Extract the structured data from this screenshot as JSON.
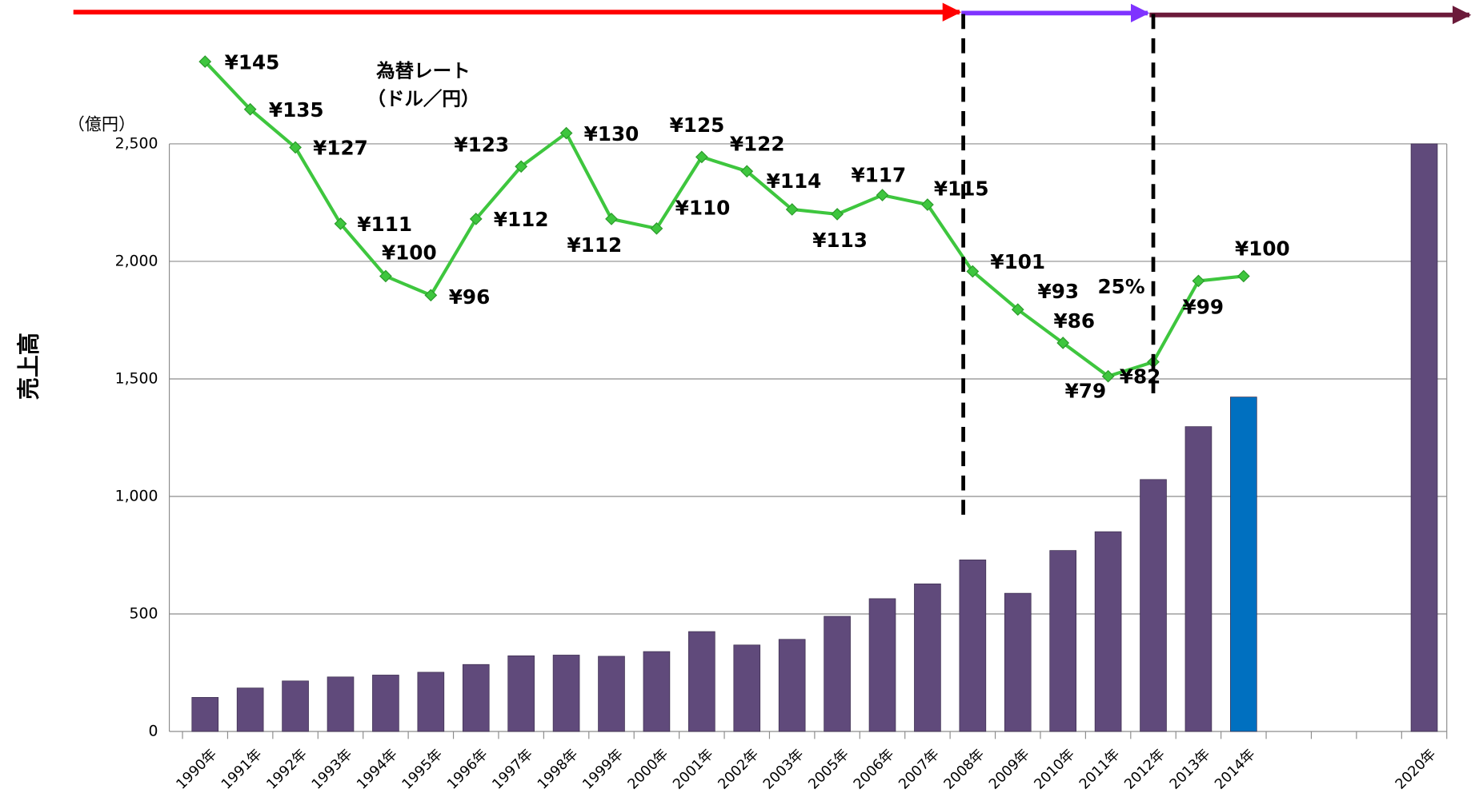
{
  "chart_data": {
    "type": "bar",
    "y_axis_label": "売上高",
    "unit_label": "（億円）",
    "annotations": [
      "為替レート",
      "（ドル／円）",
      "25%"
    ],
    "categories": [
      "1990年",
      "1991年",
      "1992年",
      "1993年",
      "1994年",
      "1995年",
      "1996年",
      "1997年",
      "1998年",
      "1999年",
      "2000年",
      "2001年",
      "2002年",
      "2003年",
      "2005年",
      "2006年",
      "2007年",
      "2008年",
      "2009年",
      "2010年",
      "2011年",
      "2012年",
      "2013年",
      "2014年",
      null,
      null,
      null,
      "2020年"
    ],
    "values": [
      145,
      185,
      215,
      232,
      240,
      252,
      285,
      322,
      325,
      320,
      340,
      425,
      368,
      392,
      490,
      565,
      628,
      730,
      588,
      770,
      850,
      1072,
      1297,
      1423,
      null,
      null,
      null,
      2500
    ],
    "colors": [
      "#604a7b",
      "#604a7b",
      "#604a7b",
      "#604a7b",
      "#604a7b",
      "#604a7b",
      "#604a7b",
      "#604a7b",
      "#604a7b",
      "#604a7b",
      "#604a7b",
      "#604a7b",
      "#604a7b",
      "#604a7b",
      "#604a7b",
      "#604a7b",
      "#604a7b",
      "#604a7b",
      "#604a7b",
      "#604a7b",
      "#604a7b",
      "#604a7b",
      "#604a7b",
      "#0070c0",
      null,
      null,
      null,
      "#604a7b"
    ],
    "ylim": [
      0,
      2500
    ],
    "yticks": [
      0,
      500,
      {
        "value": 1000,
        "label": "1,000"
      },
      {
        "value": 1500,
        "label": "1,500"
      },
      {
        "value": 2000,
        "label": "2,000"
      },
      {
        "value": 2500,
        "label": "2,500"
      }
    ],
    "grid": true,
    "line": {
      "type": "line",
      "axis": "y2",
      "color": "#3ec63e",
      "values": [
        145,
        135,
        127,
        111,
        100,
        96,
        112,
        123,
        130,
        112,
        110,
        125,
        122,
        114,
        113,
        117,
        115,
        101,
        93,
        86,
        79,
        82,
        99,
        100,
        null,
        null,
        null,
        null
      ],
      "value_labels": [
        "¥145",
        "¥135",
        "¥127",
        "¥111",
        "¥100",
        "¥96",
        "¥112",
        "¥123",
        "¥130",
        "¥112",
        "¥110",
        "¥125",
        "¥122",
        "¥114",
        "¥113",
        "¥117",
        "¥115",
        "¥101",
        "¥93",
        "¥86",
        "¥79",
        "¥82",
        "¥99",
        "¥100",
        null,
        null,
        null,
        null
      ]
    },
    "y2lim": [
      4.5,
      127.75
    ]
  }
}
